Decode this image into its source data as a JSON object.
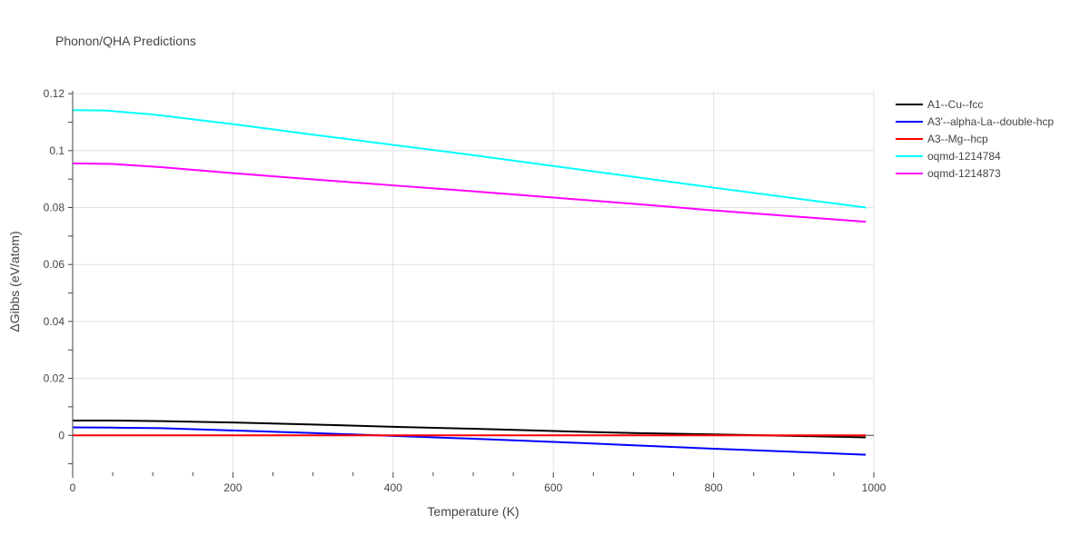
{
  "chart_data": {
    "type": "line",
    "title": "Phonon/QHA Predictions",
    "xlabel": "Temperature (K)",
    "ylabel": "ΔGibbs (eV/atom)",
    "xlim": [
      0,
      1000
    ],
    "ylim": [
      -0.013,
      0.121
    ],
    "x_ticks": [
      0,
      200,
      400,
      600,
      800,
      1000
    ],
    "x_tick_labels": [
      "0",
      "200",
      "400",
      "600",
      "800",
      "1000"
    ],
    "y_ticks": [
      0,
      0.02,
      0.04,
      0.06,
      0.08,
      0.1,
      0.12
    ],
    "y_tick_labels": [
      "0",
      "0.02",
      "0.04",
      "0.06",
      "0.08",
      "0.1",
      "0.12"
    ],
    "grid": true,
    "legend_position": "right",
    "series": [
      {
        "name": "A1--Cu--fcc",
        "color": "#000000",
        "x": [
          0,
          50,
          110,
          200,
          300,
          400,
          500,
          600,
          700,
          800,
          900,
          990
        ],
        "y": [
          0.0052,
          0.0052,
          0.005,
          0.0045,
          0.0038,
          0.003,
          0.0023,
          0.0015,
          0.0008,
          0.0003,
          -0.0002,
          -0.0007
        ]
      },
      {
        "name": "A3'--alpha-La--double-hcp",
        "color": "#0000ff",
        "x": [
          0,
          50,
          110,
          200,
          300,
          400,
          500,
          600,
          700,
          800,
          900,
          990
        ],
        "y": [
          0.0028,
          0.0027,
          0.0025,
          0.0017,
          0.0008,
          -0.0002,
          -0.0012,
          -0.0023,
          -0.0035,
          -0.0047,
          -0.0058,
          -0.0068
        ]
      },
      {
        "name": "A3--Mg--hcp",
        "color": "#ff0000",
        "x": [
          0,
          200,
          400,
          600,
          800,
          990
        ],
        "y": [
          0,
          0,
          0,
          0,
          0,
          0
        ]
      },
      {
        "name": "oqmd-1214784",
        "color": "#00ffff",
        "x": [
          0,
          40,
          100,
          200,
          300,
          400,
          500,
          600,
          700,
          800,
          900,
          990
        ],
        "y": [
          0.1142,
          0.1141,
          0.1127,
          0.1093,
          0.1056,
          0.102,
          0.0984,
          0.0946,
          0.0908,
          0.087,
          0.0833,
          0.08
        ]
      },
      {
        "name": "oqmd-1214873",
        "color": "#ff00ff",
        "x": [
          0,
          50,
          110,
          200,
          300,
          400,
          500,
          600,
          700,
          800,
          900,
          990
        ],
        "y": [
          0.0955,
          0.0953,
          0.0942,
          0.0921,
          0.0899,
          0.0878,
          0.0857,
          0.0835,
          0.0813,
          0.079,
          0.0769,
          0.075
        ]
      }
    ]
  }
}
